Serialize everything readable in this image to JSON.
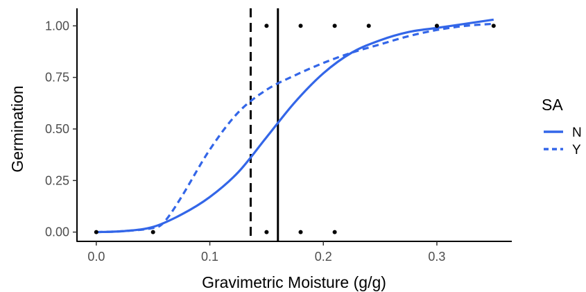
{
  "chart_data": {
    "type": "line",
    "title": "",
    "xlabel": "Gravimetric Moisture (g/g)",
    "ylabel": "Germination",
    "xlim": [
      -0.017,
      0.366
    ],
    "ylim": [
      -0.045,
      1.085
    ],
    "x_ticks": [
      0.0,
      0.1,
      0.2,
      0.3
    ],
    "x_tick_labels": [
      "0.0",
      "0.1",
      "0.2",
      "0.3"
    ],
    "y_ticks": [
      0.0,
      0.25,
      0.5,
      0.75,
      1.0
    ],
    "y_tick_labels": [
      "0.00",
      "0.25",
      "0.50",
      "0.75",
      "1.00"
    ],
    "grid": false,
    "legend": {
      "title": "SA",
      "position": "right",
      "entries": [
        {
          "label": "N",
          "linestyle": "solid",
          "color": "#3366e8"
        },
        {
          "label": "Y",
          "linestyle": "dashed",
          "color": "#3366e8"
        }
      ]
    },
    "points": {
      "x": [
        0.0,
        0.05,
        0.15,
        0.15,
        0.18,
        0.18,
        0.21,
        0.21,
        0.24,
        0.3,
        0.35
      ],
      "y": [
        0,
        0,
        0,
        1,
        0,
        1,
        0,
        1,
        1,
        1,
        1
      ],
      "color": "#000000"
    },
    "series": [
      {
        "name": "N",
        "linestyle": "solid",
        "color": "#3366e8",
        "x": [
          0.0,
          0.025,
          0.05,
          0.075,
          0.1,
          0.125,
          0.15,
          0.175,
          0.2,
          0.225,
          0.25,
          0.275,
          0.3,
          0.325,
          0.35
        ],
        "y": [
          0.0,
          0.005,
          0.025,
          0.085,
          0.17,
          0.29,
          0.46,
          0.63,
          0.77,
          0.87,
          0.93,
          0.97,
          0.99,
          1.01,
          1.03
        ]
      },
      {
        "name": "Y",
        "linestyle": "dashed",
        "color": "#3366e8",
        "x": [
          0.0,
          0.025,
          0.05,
          0.06,
          0.075,
          0.1,
          0.125,
          0.15,
          0.175,
          0.2,
          0.225,
          0.25,
          0.275,
          0.3,
          0.325,
          0.35
        ],
        "y": [
          0.0,
          0.005,
          0.02,
          0.05,
          0.17,
          0.4,
          0.58,
          0.69,
          0.76,
          0.82,
          0.87,
          0.91,
          0.95,
          0.98,
          1.0,
          1.01
        ]
      }
    ],
    "vlines": [
      {
        "x": 0.136,
        "linestyle": "dashed",
        "color": "#000000"
      },
      {
        "x": 0.16,
        "linestyle": "solid",
        "color": "#000000"
      }
    ]
  }
}
